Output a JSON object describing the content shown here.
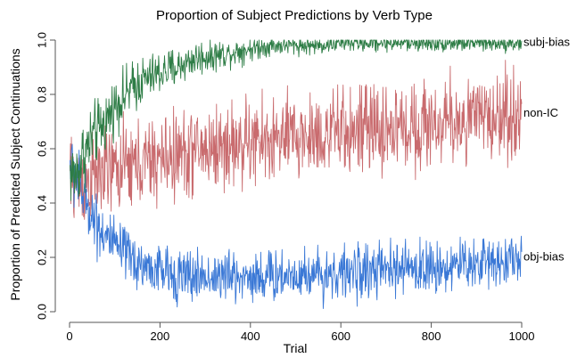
{
  "chart_data": {
    "type": "line",
    "title": "Proportion of Subject Predictions by Verb Type",
    "xlabel": "Trial",
    "ylabel": "Proportion of Predicted Subject Continuations",
    "xlim": [
      0,
      1000
    ],
    "ylim": [
      0,
      1
    ],
    "x_ticks": [
      0,
      200,
      400,
      600,
      800,
      1000
    ],
    "y_ticks": [
      0.0,
      0.2,
      0.4,
      0.6,
      0.8,
      1.0
    ],
    "x_tick_labels": [
      "0",
      "200",
      "400",
      "600",
      "800",
      "1000"
    ],
    "y_tick_labels": [
      "0.0",
      "0.2",
      "0.4",
      "0.6",
      "0.8",
      "1.0"
    ],
    "grid": false,
    "legend": "none",
    "series": [
      {
        "name": "subj-bias",
        "color": "#2e7d46",
        "x": [
          0,
          10,
          20,
          30,
          40,
          50,
          60,
          80,
          100,
          125,
          150,
          175,
          200,
          225,
          250,
          275,
          300,
          350,
          400,
          450,
          500,
          550,
          600,
          650,
          700,
          750,
          800,
          850,
          900,
          950,
          1000
        ],
        "values": [
          0.52,
          0.5,
          0.52,
          0.58,
          0.6,
          0.64,
          0.66,
          0.7,
          0.76,
          0.8,
          0.84,
          0.86,
          0.88,
          0.89,
          0.91,
          0.93,
          0.94,
          0.95,
          0.97,
          0.98,
          0.98,
          0.98,
          0.99,
          0.99,
          0.99,
          0.99,
          0.99,
          0.99,
          0.99,
          0.99,
          0.99
        ],
        "noise": [
          0.08,
          0.08,
          0.08,
          0.08,
          0.08,
          0.08,
          0.07,
          0.07,
          0.06,
          0.06,
          0.06,
          0.05,
          0.05,
          0.05,
          0.04,
          0.04,
          0.04,
          0.03,
          0.03,
          0.02,
          0.02,
          0.02,
          0.02,
          0.02,
          0.02,
          0.02,
          0.02,
          0.02,
          0.02,
          0.02,
          0.02
        ],
        "end_label": "subj-bias"
      },
      {
        "name": "non-IC",
        "color": "#c96b6e",
        "x": [
          0,
          10,
          20,
          30,
          40,
          50,
          60,
          80,
          100,
          125,
          150,
          175,
          200,
          225,
          250,
          275,
          300,
          350,
          400,
          450,
          500,
          550,
          600,
          650,
          700,
          750,
          800,
          850,
          900,
          950,
          1000
        ],
        "values": [
          0.5,
          0.48,
          0.47,
          0.47,
          0.48,
          0.49,
          0.5,
          0.51,
          0.52,
          0.53,
          0.54,
          0.55,
          0.56,
          0.57,
          0.58,
          0.59,
          0.6,
          0.61,
          0.62,
          0.63,
          0.64,
          0.65,
          0.66,
          0.67,
          0.67,
          0.68,
          0.69,
          0.7,
          0.71,
          0.72,
          0.73
        ],
        "noise": [
          0.1,
          0.1,
          0.1,
          0.1,
          0.1,
          0.1,
          0.1,
          0.1,
          0.1,
          0.1,
          0.1,
          0.1,
          0.1,
          0.1,
          0.1,
          0.1,
          0.1,
          0.1,
          0.1,
          0.1,
          0.1,
          0.1,
          0.1,
          0.1,
          0.1,
          0.1,
          0.1,
          0.1,
          0.1,
          0.1,
          0.1
        ],
        "end_label": "non-IC"
      },
      {
        "name": "obj-bias",
        "color": "#3a78d6",
        "x": [
          0,
          10,
          20,
          30,
          40,
          50,
          60,
          80,
          100,
          125,
          150,
          175,
          200,
          225,
          250,
          275,
          300,
          350,
          400,
          450,
          500,
          550,
          600,
          650,
          700,
          750,
          800,
          850,
          900,
          950,
          1000
        ],
        "values": [
          0.55,
          0.52,
          0.47,
          0.43,
          0.39,
          0.36,
          0.33,
          0.28,
          0.24,
          0.21,
          0.18,
          0.16,
          0.15,
          0.14,
          0.13,
          0.13,
          0.13,
          0.13,
          0.13,
          0.13,
          0.14,
          0.14,
          0.14,
          0.15,
          0.15,
          0.16,
          0.16,
          0.17,
          0.18,
          0.19,
          0.2
        ],
        "noise": [
          0.08,
          0.08,
          0.08,
          0.07,
          0.07,
          0.07,
          0.07,
          0.07,
          0.06,
          0.06,
          0.06,
          0.06,
          0.06,
          0.06,
          0.06,
          0.06,
          0.06,
          0.06,
          0.06,
          0.06,
          0.06,
          0.06,
          0.06,
          0.06,
          0.06,
          0.06,
          0.06,
          0.06,
          0.06,
          0.06,
          0.06
        ],
        "end_label": "obj-bias"
      }
    ]
  }
}
